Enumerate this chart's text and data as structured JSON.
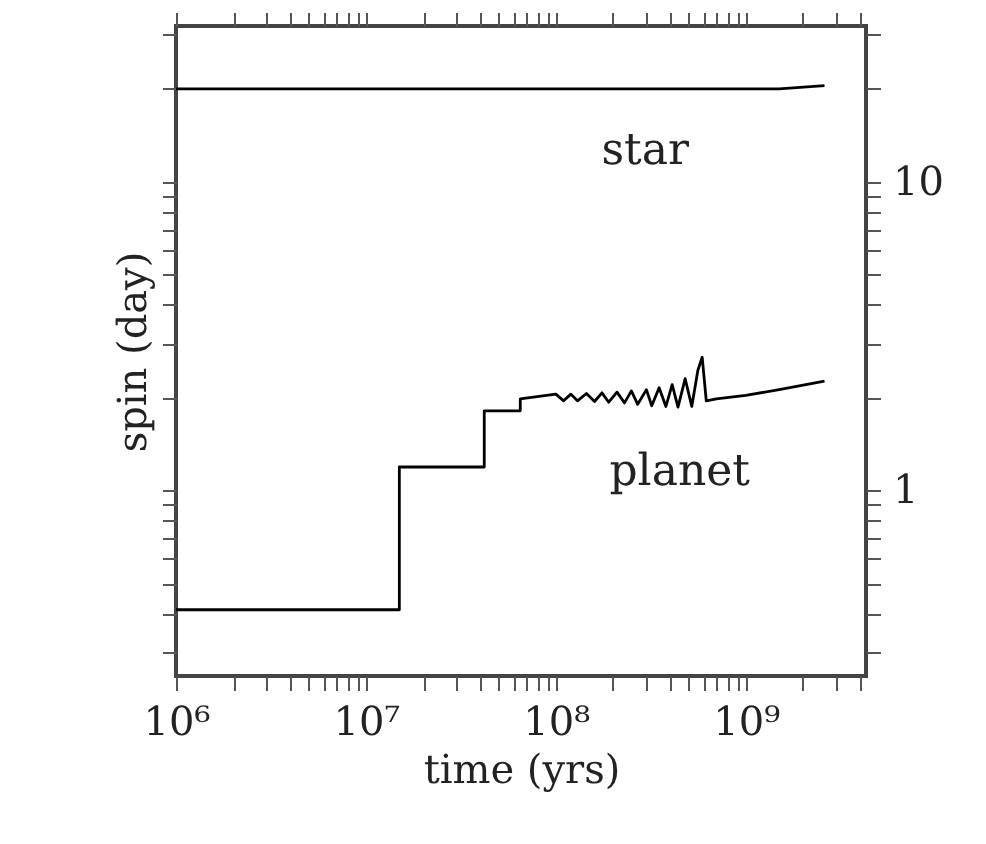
{
  "chart_data": {
    "type": "line",
    "xlabel": "time (yrs)",
    "ylabel": "spin (day)",
    "log": "xy",
    "marker": "none",
    "line_style": "solid",
    "xlim": [
      1000000,
      4300000000
    ],
    "ylim": [
      0.25,
      32
    ],
    "xticks": [
      {
        "value": 1000000,
        "label": "10⁶"
      },
      {
        "value": 2000000,
        "label": null
      },
      {
        "value": 3000000,
        "label": null
      },
      {
        "value": 4000000,
        "label": null
      },
      {
        "value": 5000000,
        "label": null
      },
      {
        "value": 6000000,
        "label": null
      },
      {
        "value": 7000000,
        "label": null
      },
      {
        "value": 8000000,
        "label": null
      },
      {
        "value": 9000000,
        "label": null
      },
      {
        "value": 10000000,
        "label": "10⁷"
      },
      {
        "value": 20000000,
        "label": null
      },
      {
        "value": 30000000,
        "label": null
      },
      {
        "value": 40000000,
        "label": null
      },
      {
        "value": 50000000,
        "label": null
      },
      {
        "value": 60000000,
        "label": null
      },
      {
        "value": 70000000,
        "label": null
      },
      {
        "value": 80000000,
        "label": null
      },
      {
        "value": 90000000,
        "label": null
      },
      {
        "value": 100000000,
        "label": "10⁸"
      },
      {
        "value": 200000000,
        "label": null
      },
      {
        "value": 300000000,
        "label": null
      },
      {
        "value": 400000000,
        "label": null
      },
      {
        "value": 500000000,
        "label": null
      },
      {
        "value": 600000000,
        "label": null
      },
      {
        "value": 700000000,
        "label": null
      },
      {
        "value": 800000000,
        "label": null
      },
      {
        "value": 900000000,
        "label": null
      },
      {
        "value": 1000000000,
        "label": "10⁹"
      },
      {
        "value": 2000000000,
        "label": null
      },
      {
        "value": 3000000000,
        "label": null
      },
      {
        "value": 4000000000,
        "label": null
      }
    ],
    "yticks": [
      {
        "value": 0.3,
        "label": null
      },
      {
        "value": 0.4,
        "label": null
      },
      {
        "value": 0.5,
        "label": null
      },
      {
        "value": 0.6,
        "label": null
      },
      {
        "value": 0.7,
        "label": null
      },
      {
        "value": 0.8,
        "label": null
      },
      {
        "value": 0.9,
        "label": null
      },
      1,
      {
        "value": 2,
        "label": null
      },
      {
        "value": 3,
        "label": null
      },
      {
        "value": 4,
        "label": null
      },
      {
        "value": 5,
        "label": null
      },
      {
        "value": 6,
        "label": null
      },
      {
        "value": 7,
        "label": null
      },
      {
        "value": 8,
        "label": null
      },
      {
        "value": 9,
        "label": null
      },
      10,
      {
        "value": 20,
        "label": null
      },
      {
        "value": 30,
        "label": null
      }
    ],
    "series": [
      {
        "color": "#000000",
        "x": [
          1000000,
          1500000000,
          2600000000
        ],
        "values": [
          20,
          20,
          20.5
        ]
      },
      {
        "color": "#000000",
        "x": [
          1000000,
          15000000,
          15000000,
          42000000,
          42000000,
          65000000,
          65000000,
          100000000,
          110000000,
          120000000,
          130000000,
          145000000,
          160000000,
          175000000,
          190000000,
          210000000,
          230000000,
          250000000,
          270000000,
          300000000,
          320000000,
          350000000,
          380000000,
          410000000,
          440000000,
          480000000,
          520000000,
          560000000,
          590000000,
          620000000,
          700000000,
          1000000000,
          1500000000,
          2600000000
        ],
        "values": [
          0.41,
          0.41,
          1.19,
          1.19,
          1.81,
          1.81,
          1.98,
          2.05,
          1.95,
          2.05,
          1.95,
          2.06,
          1.94,
          2.07,
          1.93,
          2.08,
          1.92,
          2.1,
          1.9,
          2.12,
          1.88,
          2.15,
          1.87,
          2.2,
          1.86,
          2.3,
          1.87,
          2.45,
          2.7,
          1.95,
          1.98,
          2.03,
          2.12,
          2.26
        ]
      }
    ],
    "annotations": [
      "star",
      "planet"
    ]
  }
}
